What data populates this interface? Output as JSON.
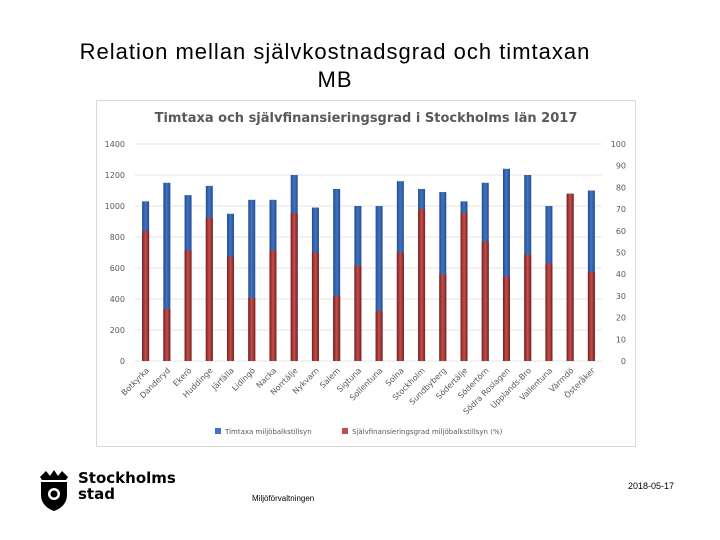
{
  "slide": {
    "title_line1": "Relation mellan självkostnadsgrad och timtaxan",
    "title_line2": "MB"
  },
  "footer": {
    "date": "2018-05-17",
    "department": "Miljöförvaltningen",
    "logo_line1": "Stockholms",
    "logo_line2": "stad"
  },
  "colors": {
    "timtaxa": "#4472c4",
    "timtaxa_dark": "#1f4e8f",
    "sjalvfin": "#c0504d",
    "sjalvfin_dark": "#7f1d1b",
    "grid": "#e6e6e6",
    "axis_text": "#595959"
  },
  "chart_data": {
    "type": "bar",
    "title": "Timtaxa och självfinansieringsgrad i Stockholms län 2017",
    "categories": [
      "Botkyrka",
      "Danderyd",
      "Ekerö",
      "Huddinge",
      "Järfälla",
      "Lidingö",
      "Nacka",
      "Norrtälje",
      "Nykvarn",
      "Salem",
      "Sigtuna",
      "Sollentuna",
      "Solna",
      "Stockholm",
      "Sundbyberg",
      "Södertälje",
      "Södertörn",
      "Södra Roslagen",
      "Upplands-Bro",
      "Vallentuna",
      "Värmdö",
      "Österåker"
    ],
    "series": [
      {
        "name": "Timtaxa miljöbalkstillsyn",
        "axis": "left",
        "values": [
          1030,
          1150,
          1070,
          1130,
          950,
          1040,
          1040,
          1200,
          990,
          1110,
          1000,
          1000,
          1160,
          1110,
          1090,
          1030,
          1150,
          1240,
          1200,
          1000,
          1080,
          1100
        ]
      },
      {
        "name": "Självfinansieringsgrad miljöbalkstillsyn (%)",
        "axis": "right",
        "values": [
          60,
          24,
          51,
          66,
          48,
          29,
          51,
          68,
          50,
          30,
          44,
          23,
          50,
          70,
          40,
          68,
          55,
          39,
          49,
          45,
          77,
          41
        ]
      }
    ],
    "y_left": {
      "min": 0,
      "max": 1400,
      "ticks": [
        "0",
        "200",
        "400",
        "600",
        "800",
        "1000",
        "1200",
        "1400"
      ]
    },
    "y_right": {
      "min": 0,
      "max": 100,
      "ticks": [
        "0",
        "10",
        "20",
        "30",
        "40",
        "50",
        "60",
        "70",
        "80",
        "90",
        "100"
      ]
    },
    "legend_position": "bottom",
    "grid": true
  }
}
